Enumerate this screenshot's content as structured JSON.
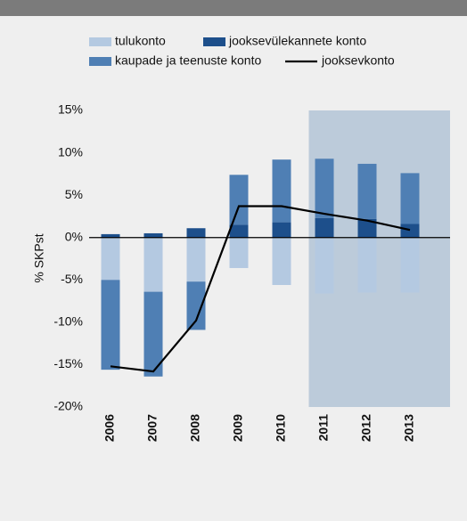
{
  "chart_data": {
    "type": "bar",
    "y_label": "% SKPst",
    "categories": [
      "2006",
      "2007",
      "2008",
      "2009",
      "2010",
      "2011",
      "2012",
      "2013"
    ],
    "series": [
      {
        "name": "tulukonto",
        "color": "#b4c9e1",
        "values": [
          -5.0,
          -6.4,
          -5.2,
          -3.6,
          -5.6,
          -6.6,
          -6.5,
          -6.5
        ]
      },
      {
        "name": "jooksevülekannete konto",
        "color": "#1d4f8b",
        "values": [
          0.4,
          0.5,
          1.1,
          1.5,
          1.8,
          2.3,
          2.2,
          1.6
        ]
      },
      {
        "name": "kaupade ja teenuste konto",
        "color": "#4f7fb4",
        "values": [
          -10.6,
          -10.0,
          -5.7,
          5.9,
          7.4,
          7.0,
          6.5,
          6.0
        ]
      },
      {
        "name": "jooksevkonto",
        "type": "line",
        "color": "#000000",
        "values": [
          -15.2,
          -15.8,
          -9.8,
          3.7,
          3.7,
          2.8,
          2.0,
          0.9
        ]
      }
    ],
    "ylim": [
      -20,
      15
    ],
    "yticks": [
      {
        "value": -20,
        "label": "-20%"
      },
      {
        "value": -15,
        "label": "-15%"
      },
      {
        "value": -10,
        "label": "-10%"
      },
      {
        "value": -5,
        "label": "-5%"
      },
      {
        "value": 0,
        "label": "0%"
      },
      {
        "value": 5,
        "label": "5%"
      },
      {
        "value": 10,
        "label": "10%"
      },
      {
        "value": 15,
        "label": "15%"
      }
    ]
  }
}
